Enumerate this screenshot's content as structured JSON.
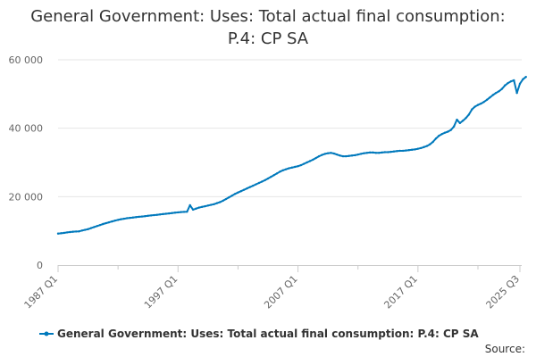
{
  "chart_data": {
    "type": "line",
    "title_lines": [
      "General Government: Uses: Total actual final consumption:",
      "P.4: CP SA"
    ],
    "xlabel": "",
    "ylabel": "",
    "ylim": [
      0,
      60000
    ],
    "yticks": [
      {
        "value": 0,
        "label": "0"
      },
      {
        "value": 20000,
        "label": "20 000"
      },
      {
        "value": 40000,
        "label": "40 000"
      },
      {
        "value": 60000,
        "label": "60 000"
      }
    ],
    "x_start": "1987 Q1",
    "x_end": "2025 Q3",
    "n_points": 155,
    "xtick_labels": [
      {
        "index": 0,
        "label": "1987 Q1"
      },
      {
        "index": 40,
        "label": "1997 Q1"
      },
      {
        "index": 80,
        "label": "2007 Q1"
      },
      {
        "index": 120,
        "label": "2017 Q1"
      },
      {
        "index": 154,
        "label": "2025 Q3"
      }
    ],
    "minor_tick_indices": [
      20,
      60,
      100,
      140
    ],
    "grid": "horizontal",
    "legend_position": "bottom",
    "series": [
      {
        "name": "General Government: Uses: Total actual final consumption: P.4: CP SA",
        "color": "#0079bc",
        "values": [
          9200,
          9300,
          9400,
          9550,
          9650,
          9750,
          9800,
          9850,
          10100,
          10300,
          10500,
          10800,
          11100,
          11400,
          11700,
          12000,
          12250,
          12500,
          12750,
          13000,
          13200,
          13400,
          13550,
          13700,
          13800,
          13900,
          14000,
          14100,
          14200,
          14300,
          14400,
          14500,
          14600,
          14700,
          14800,
          14900,
          15000,
          15100,
          15200,
          15300,
          15400,
          15500,
          15550,
          15600,
          17500,
          16200,
          16500,
          16800,
          17000,
          17200,
          17400,
          17600,
          17800,
          18100,
          18400,
          18800,
          19300,
          19800,
          20300,
          20800,
          21200,
          21600,
          22000,
          22400,
          22800,
          23200,
          23600,
          24000,
          24400,
          24800,
          25300,
          25800,
          26300,
          26800,
          27300,
          27700,
          28000,
          28300,
          28500,
          28700,
          28900,
          29200,
          29600,
          30000,
          30400,
          30800,
          31300,
          31800,
          32200,
          32500,
          32700,
          32800,
          32600,
          32300,
          32000,
          31800,
          31800,
          31900,
          32000,
          32100,
          32300,
          32500,
          32700,
          32800,
          32900,
          32900,
          32800,
          32800,
          32900,
          33000,
          33000,
          33100,
          33200,
          33300,
          33400,
          33400,
          33500,
          33600,
          33700,
          33800,
          34000,
          34200,
          34500,
          34800,
          35300,
          36000,
          37000,
          37800,
          38300,
          38700,
          39000,
          39500,
          40500,
          42500,
          41500,
          42200,
          43000,
          44000,
          45500,
          46300,
          46800,
          47200,
          47700,
          48300,
          49000,
          49700,
          50300,
          50800,
          51500,
          52500,
          53200,
          53700,
          54000,
          50300,
          53000,
          54300,
          55000
        ]
      }
    ],
    "source_label": "Source:"
  }
}
